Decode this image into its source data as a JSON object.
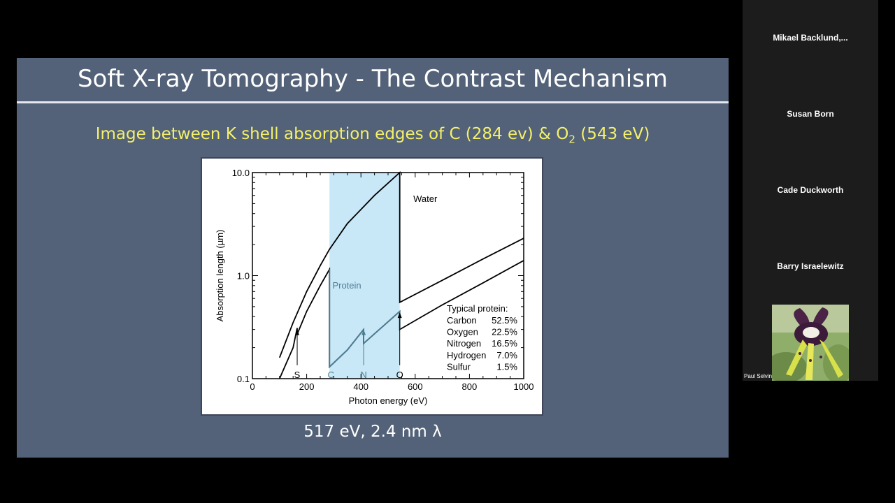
{
  "slide": {
    "title": "Soft X-ray Tomography - The Contrast Mechanism",
    "subtitle_main": "Image between K shell absorption edges of C (284 ev) & O",
    "subtitle_sub": "2",
    "subtitle_end": " (543 eV)",
    "caption": "517 eV, 2.4 nm λ"
  },
  "chart_data": {
    "type": "line",
    "xlabel": "Photon energy (eV)",
    "ylabel": "Absorption length (µm)",
    "xlim": [
      0,
      1000
    ],
    "ylim": [
      0.1,
      10
    ],
    "yscale": "log",
    "x_ticks": [
      "0",
      "200",
      "400",
      "600",
      "800",
      "1000"
    ],
    "y_ticks": [
      "0.1",
      "1.0",
      "10.0"
    ],
    "highlight_band": {
      "x": [
        284,
        543
      ],
      "color": "#c8e7f7"
    },
    "series": [
      {
        "name": "Water",
        "points": [
          [
            100,
            0.16
          ],
          [
            150,
            0.35
          ],
          [
            200,
            0.7
          ],
          [
            250,
            1.25
          ],
          [
            284,
            1.8
          ],
          [
            350,
            3.2
          ],
          [
            450,
            6.0
          ],
          [
            543,
            10.0
          ],
          [
            543,
            0.55
          ],
          [
            700,
            0.9
          ],
          [
            850,
            1.45
          ],
          [
            1000,
            2.3
          ]
        ]
      },
      {
        "name": "Protein",
        "points": [
          [
            100,
            0.1
          ],
          [
            150,
            0.2
          ],
          [
            165,
            0.31
          ],
          [
            165,
            0.27
          ],
          [
            200,
            0.45
          ],
          [
            250,
            0.8
          ],
          [
            284,
            1.15
          ],
          [
            284,
            0.13
          ],
          [
            350,
            0.19
          ],
          [
            410,
            0.3
          ],
          [
            410,
            0.22
          ],
          [
            480,
            0.32
          ],
          [
            543,
            0.45
          ],
          [
            543,
            0.3
          ],
          [
            700,
            0.52
          ],
          [
            850,
            0.85
          ],
          [
            1000,
            1.4
          ]
        ]
      }
    ],
    "edge_markers": [
      {
        "label": "S",
        "x": 165
      },
      {
        "label": "C",
        "x": 284
      },
      {
        "label": "N",
        "x": 410
      },
      {
        "label": "O",
        "x": 543
      }
    ],
    "composition": {
      "title": "Typical protein:",
      "rows": [
        {
          "element": "Carbon",
          "value": "52.5%"
        },
        {
          "element": "Oxygen",
          "value": "22.5%"
        },
        {
          "element": "Nitrogen",
          "value": "16.5%"
        },
        {
          "element": "Hydrogen",
          "value": "7.0%"
        },
        {
          "element": "Sulfur",
          "value": "1.5%"
        }
      ]
    }
  },
  "participants": [
    {
      "name": "Mikael  Backlund,..."
    },
    {
      "name": "Susan Born"
    },
    {
      "name": "Cade Duckworth"
    },
    {
      "name": "Barry Israelewitz"
    }
  ],
  "video_participant": {
    "name": "Paul Selvin"
  },
  "colors": {
    "slide_bg": "#536278",
    "subtitle": "#f4f06a",
    "band": "#c8e7f7",
    "protein_line": "#4e7e92"
  }
}
